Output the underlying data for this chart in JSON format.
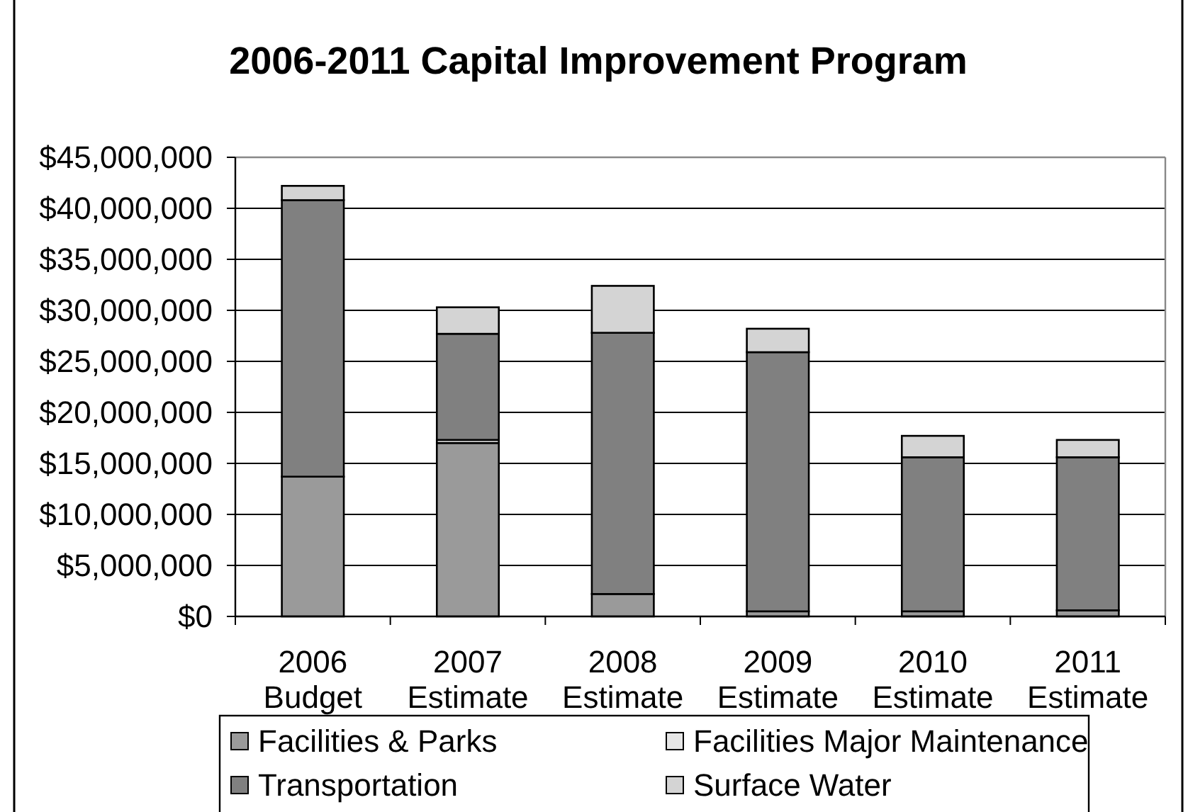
{
  "chart_data": {
    "type": "bar",
    "title": "2006-2011 Capital Improvement Program",
    "categories": [
      "2006 Budget",
      "2007 Estimate",
      "2008 Estimate",
      "2009 Estimate",
      "2010 Estimate",
      "2011 Estimate"
    ],
    "series": [
      {
        "name": "Facilities & Parks",
        "color": "#9a9a9a",
        "values": [
          13700000,
          17000000,
          2200000,
          500000,
          500000,
          600000
        ]
      },
      {
        "name": "Facilities Major Maintenance",
        "color": "#e6e6e6",
        "values": [
          0,
          300000,
          0,
          0,
          0,
          0
        ]
      },
      {
        "name": "Transportation",
        "color": "#808080",
        "values": [
          27100000,
          10400000,
          25600000,
          25400000,
          15100000,
          15000000
        ]
      },
      {
        "name": "Surface Water",
        "color": "#d4d4d4",
        "values": [
          1400000,
          2600000,
          4600000,
          2300000,
          2100000,
          1700000
        ]
      }
    ],
    "stacked": true,
    "ylim": [
      0,
      45000000
    ],
    "yticks": [
      {
        "value": 0,
        "label": "$0"
      },
      {
        "value": 5000000,
        "label": "$5,000,000"
      },
      {
        "value": 10000000,
        "label": "$10,000,000"
      },
      {
        "value": 15000000,
        "label": "$15,000,000"
      },
      {
        "value": 20000000,
        "label": "$20,000,000"
      },
      {
        "value": 25000000,
        "label": "$25,000,000"
      },
      {
        "value": 30000000,
        "label": "$30,000,000"
      },
      {
        "value": 35000000,
        "label": "$35,000,000"
      },
      {
        "value": 40000000,
        "label": "$40,000,000"
      },
      {
        "value": 45000000,
        "label": "$45,000,000"
      }
    ],
    "grid": "y",
    "legend": "bottom"
  }
}
